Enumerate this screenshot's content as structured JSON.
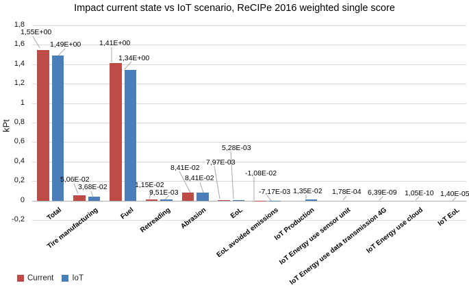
{
  "title": "Impact current state vs IoT scenario, ReCIPe 2016 weighted single score",
  "chart_data": {
    "type": "bar",
    "title": "Impact current state vs IoT scenario, ReCIPe 2016 weighted single score",
    "xlabel": "",
    "ylabel": "kPt",
    "ylim": [
      -0.2,
      1.8
    ],
    "ytick_step": 0.2,
    "yticks": [
      "1,8",
      "1,6",
      "1,4",
      "1,2",
      "1",
      "0,8",
      "0,6",
      "0,4",
      "0,2",
      "0",
      "-0,2"
    ],
    "grid": true,
    "decimal_style": "comma",
    "legend_position": "bottom-left",
    "categories": [
      "Total",
      "Tire manufacturing",
      "Fuel",
      "Retreading",
      "Abrasion",
      "EoL",
      "EoL avoided emissions",
      "IoT Production",
      "IoT Energy use sensor unit",
      "IoT Energy use data transmission 4G",
      "IoT Energy use cloud",
      "IoT EoL"
    ],
    "series": [
      {
        "name": "Current",
        "color": "#bf4b47",
        "values": [
          1.55,
          0.0506,
          1.41,
          0.0115,
          0.0841,
          0.00797,
          -0.0108,
          null,
          null,
          null,
          null,
          null
        ],
        "labels": [
          "1,55E+00",
          "5,06E-02",
          "1,41E+00",
          "1,15E-02",
          "8,41E-02",
          "7,97E-03",
          "-1,08E-02",
          null,
          null,
          null,
          null,
          null
        ]
      },
      {
        "name": "IoT",
        "color": "#4a7ebb",
        "values": [
          1.49,
          0.0368,
          1.34,
          0.00951,
          0.0841,
          0.00528,
          -0.00717,
          0.0135,
          0.000178,
          6.39e-09,
          1.05e-10,
          1.4e-05
        ],
        "labels": [
          "1,49E+00",
          "3,68E-02",
          "1,34E+00",
          "9,51E-03",
          "8,41E-02",
          "5,28E-03",
          "-7,17E-03",
          "1,35E-02",
          "1,78E-04",
          "6,39E-09",
          "1,05E-10",
          "1,40E-05"
        ]
      }
    ]
  },
  "legend": {
    "items": [
      {
        "label": "Current",
        "color": "#bf4b47"
      },
      {
        "label": "IoT",
        "color": "#4a7ebb"
      }
    ]
  }
}
